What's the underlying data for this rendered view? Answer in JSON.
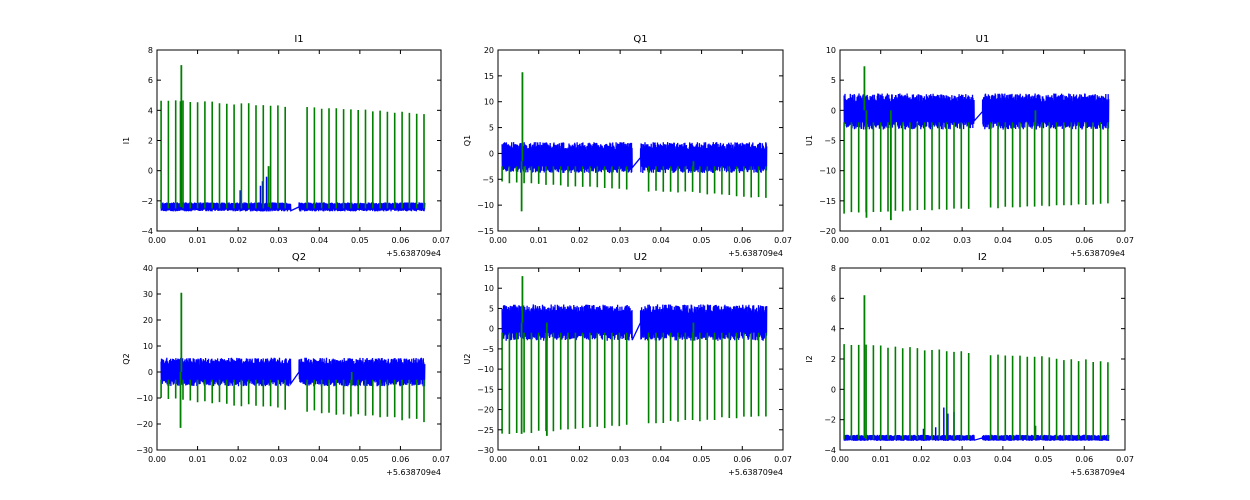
{
  "figure": {
    "background": "#ffffff",
    "title": ""
  },
  "colors": {
    "trace_a": "#0000ff",
    "trace_b": "#007f00",
    "axes": "#000000"
  },
  "chart_data": [
    {
      "type": "line",
      "title": "I1",
      "xlabel": "",
      "ylabel": "I1",
      "xlim": [
        0.0,
        0.07
      ],
      "ylim": [
        -4,
        8
      ],
      "xticks": [
        "0.00",
        "0.01",
        "0.02",
        "0.03",
        "0.04",
        "0.05",
        "0.06",
        "0.07"
      ],
      "yticks": [
        "−4",
        "−2",
        "0",
        "2",
        "4",
        "6",
        "8"
      ],
      "x_offset_text": "+5.638709e4",
      "gap": [
        0.033,
        0.035
      ],
      "series": [
        {
          "name": "blue",
          "color": "#0000ff",
          "x_range": [
            0.001,
            0.066
          ],
          "band": [
            -2.7,
            -2.1
          ],
          "spikes": [
            [
              0.0205,
              -1.3
            ],
            [
              0.0255,
              -1.0
            ],
            [
              0.026,
              -0.7
            ],
            [
              0.027,
              -0.4
            ],
            [
              0.0275,
              -0.5
            ]
          ]
        },
        {
          "name": "green",
          "color": "#007f00",
          "x_range": [
            0.001,
            0.066
          ],
          "baseline": -2.4,
          "spike_period": 0.0018,
          "spike_top": [
            4.7,
            3.8
          ],
          "spike_bottom": -2.5,
          "extremes": [
            [
              0.006,
              7.0
            ],
            [
              0.0058,
              4.6
            ],
            [
              0.0275,
              0.3
            ]
          ]
        }
      ]
    },
    {
      "type": "line",
      "title": "Q1",
      "xlabel": "",
      "ylabel": "Q1",
      "xlim": [
        0.0,
        0.07
      ],
      "ylim": [
        -15,
        20
      ],
      "xticks": [
        "0.00",
        "0.01",
        "0.02",
        "0.03",
        "0.04",
        "0.05",
        "0.06",
        "0.07"
      ],
      "yticks": [
        "−15",
        "−10",
        "−5",
        "0",
        "5",
        "10",
        "15",
        "20"
      ],
      "x_offset_text": "+5.638709e4",
      "gap": [
        0.033,
        0.035
      ],
      "series": [
        {
          "name": "blue",
          "color": "#0000ff",
          "x_range": [
            0.001,
            0.066
          ],
          "band": [
            -3.8,
            2.2
          ],
          "spikes": []
        },
        {
          "name": "green",
          "color": "#007f00",
          "x_range": [
            0.001,
            0.066
          ],
          "baseline": -1.5,
          "spike_period": 0.0018,
          "spike_top": [
            -5.5,
            -8.5
          ],
          "spike_bottom": -2.5,
          "extremes": [
            [
              0.006,
              15.7
            ],
            [
              0.0058,
              -11.2
            ],
            [
              0.048,
              -3.5
            ]
          ]
        }
      ]
    },
    {
      "type": "line",
      "title": "U1",
      "xlabel": "",
      "ylabel": "U1",
      "xlim": [
        0.0,
        0.07
      ],
      "ylim": [
        -20,
        10
      ],
      "xticks": [
        "0.00",
        "0.01",
        "0.02",
        "0.03",
        "0.04",
        "0.05",
        "0.06",
        "0.07"
      ],
      "yticks": [
        "−20",
        "−15",
        "−10",
        "−5",
        "0",
        "5",
        "10"
      ],
      "x_offset_text": "+5.638709e4",
      "gap": [
        0.033,
        0.035
      ],
      "series": [
        {
          "name": "blue",
          "color": "#0000ff",
          "x_range": [
            0.001,
            0.066
          ],
          "band": [
            -3.2,
            2.8
          ],
          "spikes": []
        },
        {
          "name": "green",
          "color": "#007f00",
          "x_range": [
            0.001,
            0.066
          ],
          "baseline": 0.0,
          "spike_period": 0.0018,
          "spike_top": [
            -17.0,
            -15.5
          ],
          "spike_bottom": -2.0,
          "extremes": [
            [
              0.006,
              7.3
            ],
            [
              0.0065,
              -17.8
            ],
            [
              0.0125,
              -18.2
            ],
            [
              0.048,
              -2.5
            ]
          ]
        }
      ]
    },
    {
      "type": "line",
      "title": "Q2",
      "xlabel": "",
      "ylabel": "Q2",
      "xlim": [
        0.0,
        0.07
      ],
      "ylim": [
        -30,
        40
      ],
      "xticks": [
        "0.00",
        "0.01",
        "0.02",
        "0.03",
        "0.04",
        "0.05",
        "0.06",
        "0.07"
      ],
      "yticks": [
        "−30",
        "−20",
        "−10",
        "0",
        "10",
        "20",
        "30",
        "40"
      ],
      "x_offset_text": "+5.638709e4",
      "gap": [
        0.033,
        0.035
      ],
      "series": [
        {
          "name": "blue",
          "color": "#0000ff",
          "x_range": [
            0.001,
            0.066
          ],
          "band": [
            -5.5,
            5.5
          ],
          "spikes": []
        },
        {
          "name": "green",
          "color": "#007f00",
          "x_range": [
            0.001,
            0.066
          ],
          "baseline": 0.0,
          "spike_period": 0.0018,
          "spike_top": [
            -10.0,
            -19.0
          ],
          "spike_bottom": -3.0,
          "extremes": [
            [
              0.006,
              30.5
            ],
            [
              0.0058,
              -21.5
            ],
            [
              0.048,
              -5.0
            ]
          ]
        }
      ]
    },
    {
      "type": "line",
      "title": "U2",
      "xlabel": "",
      "ylabel": "U2",
      "xlim": [
        0.0,
        0.07
      ],
      "ylim": [
        -30,
        15
      ],
      "xticks": [
        "0.00",
        "0.01",
        "0.02",
        "0.03",
        "0.04",
        "0.05",
        "0.06",
        "0.07"
      ],
      "yticks": [
        "−30",
        "−25",
        "−20",
        "−15",
        "−10",
        "−5",
        "0",
        "5",
        "10",
        "15"
      ],
      "x_offset_text": "+5.638709e4",
      "gap": [
        0.033,
        0.035
      ],
      "series": [
        {
          "name": "blue",
          "color": "#0000ff",
          "x_range": [
            0.001,
            0.066
          ],
          "band": [
            -3.0,
            6.0
          ],
          "spikes": []
        },
        {
          "name": "green",
          "color": "#007f00",
          "x_range": [
            0.001,
            0.066
          ],
          "baseline": 1.5,
          "spike_period": 0.0018,
          "spike_top": [
            -26.0,
            -21.5
          ],
          "spike_bottom": -1.0,
          "extremes": [
            [
              0.006,
              13.0
            ],
            [
              0.0058,
              -26.0
            ],
            [
              0.012,
              -26.5
            ],
            [
              0.048,
              -3.0
            ]
          ]
        }
      ]
    },
    {
      "type": "line",
      "title": "I2",
      "xlabel": "",
      "ylabel": "I2",
      "xlim": [
        0.0,
        0.07
      ],
      "ylim": [
        -4,
        8
      ],
      "xticks": [
        "0.00",
        "0.01",
        "0.02",
        "0.03",
        "0.04",
        "0.05",
        "0.06",
        "0.07"
      ],
      "yticks": [
        "−4",
        "−2",
        "0",
        "2",
        "4",
        "6",
        "8"
      ],
      "x_offset_text": "+5.638709e4",
      "gap": [
        0.033,
        0.035
      ],
      "series": [
        {
          "name": "blue",
          "color": "#0000ff",
          "x_range": [
            0.001,
            0.066
          ],
          "band": [
            -3.4,
            -3.0
          ],
          "spikes": [
            [
              0.0205,
              -2.6
            ],
            [
              0.0235,
              -2.5
            ],
            [
              0.0255,
              -1.2
            ],
            [
              0.0265,
              -1.6
            ],
            [
              0.028,
              -1.5
            ]
          ]
        },
        {
          "name": "green",
          "color": "#007f00",
          "x_range": [
            0.001,
            0.066
          ],
          "baseline": -3.2,
          "spike_period": 0.0018,
          "spike_top": [
            3.0,
            1.8
          ],
          "spike_bottom": -3.3,
          "extremes": [
            [
              0.006,
              6.2
            ],
            [
              0.048,
              -2.4
            ]
          ]
        }
      ]
    }
  ]
}
